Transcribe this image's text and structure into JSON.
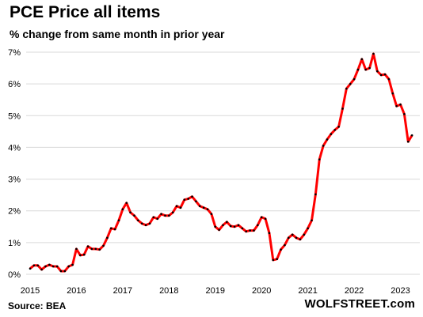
{
  "header": {
    "title": "PCE Price all items",
    "subtitle": "% change from same month in prior year"
  },
  "footer": {
    "source": "Source: BEA",
    "brand": "WOLFSTREET.com"
  },
  "colors": {
    "line": "#ff0000",
    "marker": "#000000",
    "grid": "#d9d9d9"
  },
  "chart_data": {
    "type": "line",
    "title": "PCE Price all items",
    "subtitle": "% change from same month in prior year",
    "xlabel": "",
    "ylabel": "",
    "xlim": [
      "2015-01",
      "2023-05"
    ],
    "ylim": [
      0,
      7
    ],
    "y_ticks": [
      "0%",
      "1%",
      "2%",
      "3%",
      "4%",
      "5%",
      "6%",
      "7%"
    ],
    "x_ticks": [
      "2015",
      "2016",
      "2017",
      "2018",
      "2019",
      "2020",
      "2021",
      "2022",
      "2023"
    ],
    "grid": "horizontal",
    "series": [
      {
        "x": [
          "2015-01",
          "2015-02",
          "2015-03",
          "2015-04",
          "2015-05",
          "2015-06",
          "2015-07",
          "2015-08",
          "2015-09",
          "2015-10",
          "2015-11",
          "2015-12",
          "2016-01",
          "2016-02",
          "2016-03",
          "2016-04",
          "2016-05",
          "2016-06",
          "2016-07",
          "2016-08",
          "2016-09",
          "2016-10",
          "2016-11",
          "2016-12",
          "2017-01",
          "2017-02",
          "2017-03",
          "2017-04",
          "2017-05",
          "2017-06",
          "2017-07",
          "2017-08",
          "2017-09",
          "2017-10",
          "2017-11",
          "2017-12",
          "2018-01",
          "2018-02",
          "2018-03",
          "2018-04",
          "2018-05",
          "2018-06",
          "2018-07",
          "2018-08",
          "2018-09",
          "2018-10",
          "2018-11",
          "2018-12",
          "2019-01",
          "2019-02",
          "2019-03",
          "2019-04",
          "2019-05",
          "2019-06",
          "2019-07",
          "2019-08",
          "2019-09",
          "2019-10",
          "2019-11",
          "2019-12",
          "2020-01",
          "2020-02",
          "2020-03",
          "2020-04",
          "2020-05",
          "2020-06",
          "2020-07",
          "2020-08",
          "2020-09",
          "2020-10",
          "2020-11",
          "2020-12",
          "2021-01",
          "2021-02",
          "2021-03",
          "2021-04",
          "2021-05",
          "2021-06",
          "2021-07",
          "2021-08",
          "2021-09",
          "2021-10",
          "2021-11",
          "2021-12",
          "2022-01",
          "2022-02",
          "2022-03",
          "2022-04",
          "2022-05",
          "2022-06",
          "2022-07",
          "2022-08",
          "2022-09",
          "2022-10",
          "2022-11",
          "2022-12",
          "2023-01",
          "2023-02",
          "2023-03",
          "2023-04"
        ],
        "values": [
          0.18,
          0.28,
          0.28,
          0.15,
          0.25,
          0.3,
          0.25,
          0.25,
          0.1,
          0.1,
          0.25,
          0.3,
          0.8,
          0.6,
          0.62,
          0.88,
          0.8,
          0.8,
          0.78,
          0.9,
          1.15,
          1.45,
          1.42,
          1.7,
          2.05,
          2.25,
          1.95,
          1.85,
          1.7,
          1.6,
          1.55,
          1.6,
          1.8,
          1.75,
          1.9,
          1.85,
          1.85,
          1.95,
          2.15,
          2.1,
          2.35,
          2.38,
          2.45,
          2.3,
          2.15,
          2.1,
          2.05,
          1.9,
          1.5,
          1.4,
          1.55,
          1.65,
          1.52,
          1.5,
          1.55,
          1.45,
          1.35,
          1.38,
          1.38,
          1.55,
          1.8,
          1.75,
          1.3,
          0.45,
          0.48,
          0.78,
          0.92,
          1.15,
          1.25,
          1.15,
          1.1,
          1.25,
          1.45,
          1.7,
          2.52,
          3.62,
          4.05,
          4.25,
          4.42,
          4.55,
          4.65,
          5.22,
          5.85,
          6.0,
          6.15,
          6.45,
          6.78,
          6.45,
          6.5,
          6.95,
          6.4,
          6.28,
          6.3,
          6.15,
          5.7,
          5.3,
          5.35,
          5.05,
          4.18,
          4.38
        ]
      }
    ]
  }
}
